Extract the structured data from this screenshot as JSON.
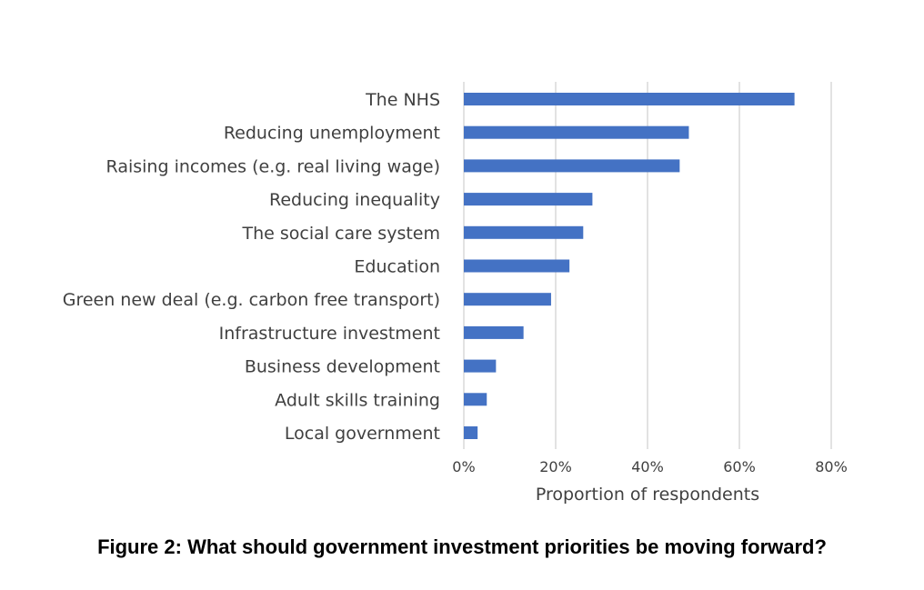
{
  "caption": "Figure 2: What should government investment priorities be moving forward?",
  "chart_data": {
    "type": "bar",
    "orientation": "horizontal",
    "categories": [
      "The NHS",
      "Reducing unemployment",
      "Raising incomes (e.g. real living wage)",
      "Reducing inequality",
      "The social care system",
      "Education",
      "Green new deal (e.g. carbon free transport)",
      "Infrastructure investment",
      "Business development",
      "Adult skills training",
      "Local government"
    ],
    "values": [
      72,
      49,
      47,
      28,
      26,
      23,
      19,
      13,
      7,
      5,
      3
    ],
    "unit": "%",
    "xlabel": "Proportion of respondents",
    "ylabel": "",
    "xlim": [
      0,
      80
    ],
    "x_ticks": [
      "0%",
      "20%",
      "40%",
      "60%",
      "80%"
    ],
    "grid": "vertical",
    "legend": "none",
    "bar_color": "#4472C4",
    "grid_color": "#D9D9D9"
  }
}
